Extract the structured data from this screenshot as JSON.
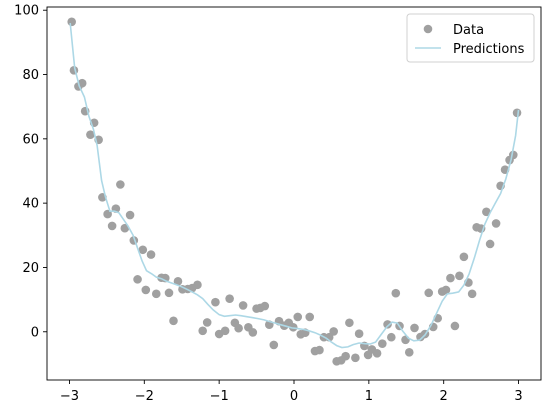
{
  "chart_data": {
    "type": "scatter",
    "title": "",
    "xlabel": "",
    "ylabel": "",
    "xlim": [
      -3.3,
      3.3
    ],
    "ylim": [
      -15,
      101
    ],
    "xticks": [
      -3,
      -2,
      -1,
      0,
      1,
      2,
      3
    ],
    "yticks": [
      0,
      20,
      40,
      60,
      80,
      100
    ],
    "grid": false,
    "legend_position": "top-right",
    "colors": {
      "data": "#a0a0a0",
      "predictions": "#add8e6"
    },
    "series": [
      {
        "name": "Data",
        "kind": "scatter",
        "points": [
          [
            -2.97,
            96.4
          ],
          [
            -2.94,
            81.3
          ],
          [
            -2.88,
            76.3
          ],
          [
            -2.83,
            77.3
          ],
          [
            -2.79,
            68.6
          ],
          [
            -2.72,
            61.3
          ],
          [
            -2.67,
            65.0
          ],
          [
            -2.61,
            59.7
          ],
          [
            -2.56,
            41.8
          ],
          [
            -2.49,
            36.6
          ],
          [
            -2.43,
            32.9
          ],
          [
            -2.38,
            38.3
          ],
          [
            -2.32,
            45.8
          ],
          [
            -2.26,
            32.2
          ],
          [
            -2.19,
            36.3
          ],
          [
            -2.14,
            28.4
          ],
          [
            -2.09,
            16.3
          ],
          [
            -2.02,
            25.5
          ],
          [
            -1.98,
            13.0
          ],
          [
            -1.91,
            24.0
          ],
          [
            -1.84,
            11.8
          ],
          [
            -1.77,
            16.8
          ],
          [
            -1.72,
            16.7
          ],
          [
            -1.67,
            12.1
          ],
          [
            -1.61,
            3.4
          ],
          [
            -1.55,
            15.7
          ],
          [
            -1.49,
            13.2
          ],
          [
            -1.42,
            13.3
          ],
          [
            -1.36,
            13.6
          ],
          [
            -1.29,
            14.6
          ],
          [
            -1.22,
            0.3
          ],
          [
            -1.16,
            2.9
          ],
          [
            -1.05,
            9.2
          ],
          [
            -1.0,
            -0.7
          ],
          [
            -0.92,
            0.3
          ],
          [
            -0.86,
            10.3
          ],
          [
            -0.79,
            2.8
          ],
          [
            -0.74,
            1.1
          ],
          [
            -0.68,
            8.2
          ],
          [
            -0.61,
            1.4
          ],
          [
            -0.55,
            -0.2
          ],
          [
            -0.5,
            7.2
          ],
          [
            -0.45,
            7.4
          ],
          [
            -0.39,
            8.0
          ],
          [
            -0.33,
            2.2
          ],
          [
            -0.27,
            -4.1
          ],
          [
            -0.2,
            3.3
          ],
          [
            -0.13,
            1.9
          ],
          [
            -0.07,
            2.8
          ],
          [
            -0.01,
            1.4
          ],
          [
            0.05,
            4.6
          ],
          [
            0.09,
            -0.8
          ],
          [
            0.15,
            -0.3
          ],
          [
            0.21,
            4.6
          ],
          [
            0.28,
            -6.0
          ],
          [
            0.34,
            -5.7
          ],
          [
            0.4,
            -1.7
          ],
          [
            0.47,
            -1.7
          ],
          [
            0.53,
            0.1
          ],
          [
            0.57,
            -9.2
          ],
          [
            0.63,
            -8.9
          ],
          [
            0.69,
            -7.6
          ],
          [
            0.74,
            2.8
          ],
          [
            0.82,
            -8.1
          ],
          [
            0.87,
            -0.6
          ],
          [
            0.94,
            -4.4
          ],
          [
            0.99,
            -7.2
          ],
          [
            1.04,
            -5.5
          ],
          [
            1.11,
            -6.7
          ],
          [
            1.18,
            -3.7
          ],
          [
            1.25,
            2.3
          ],
          [
            1.3,
            -1.7
          ],
          [
            1.36,
            12.0
          ],
          [
            1.41,
            1.8
          ],
          [
            1.49,
            -2.5
          ],
          [
            1.54,
            -6.4
          ],
          [
            1.61,
            1.2
          ],
          [
            1.69,
            -1.6
          ],
          [
            1.75,
            -0.7
          ],
          [
            1.8,
            12.1
          ],
          [
            1.86,
            1.5
          ],
          [
            1.92,
            4.2
          ],
          [
            1.98,
            12.5
          ],
          [
            2.03,
            13.0
          ],
          [
            2.09,
            16.7
          ],
          [
            2.15,
            1.8
          ],
          [
            2.21,
            17.4
          ],
          [
            2.27,
            23.3
          ],
          [
            2.33,
            15.3
          ],
          [
            2.38,
            11.8
          ],
          [
            2.44,
            32.5
          ],
          [
            2.5,
            32.1
          ],
          [
            2.57,
            37.3
          ],
          [
            2.62,
            27.3
          ],
          [
            2.7,
            33.7
          ],
          [
            2.76,
            45.4
          ],
          [
            2.82,
            50.4
          ],
          [
            2.88,
            53.4
          ],
          [
            2.93,
            55.0
          ],
          [
            2.98,
            68.1
          ]
        ]
      },
      {
        "name": "Predictions",
        "kind": "line",
        "points": [
          [
            -2.99,
            96.0
          ],
          [
            -2.93,
            82.0
          ],
          [
            -2.87,
            76.5
          ],
          [
            -2.8,
            73.0
          ],
          [
            -2.74,
            67.0
          ],
          [
            -2.68,
            63.0
          ],
          [
            -2.63,
            58.0
          ],
          [
            -2.57,
            47.0
          ],
          [
            -2.52,
            42.0
          ],
          [
            -2.46,
            37.5
          ],
          [
            -2.4,
            37.5
          ],
          [
            -2.34,
            37.0
          ],
          [
            -2.28,
            35.0
          ],
          [
            -2.22,
            33.0
          ],
          [
            -2.15,
            30.0
          ],
          [
            -2.09,
            26.0
          ],
          [
            -2.03,
            22.0
          ],
          [
            -1.97,
            19.0
          ],
          [
            -1.9,
            18.0
          ],
          [
            -1.84,
            17.0
          ],
          [
            -1.77,
            16.5
          ],
          [
            -1.71,
            15.8
          ],
          [
            -1.64,
            15.2
          ],
          [
            -1.57,
            14.6
          ],
          [
            -1.5,
            14.0
          ],
          [
            -1.43,
            13.2
          ],
          [
            -1.36,
            12.4
          ],
          [
            -1.29,
            11.5
          ],
          [
            -1.22,
            10.3
          ],
          [
            -1.15,
            8.5
          ],
          [
            -1.08,
            6.8
          ],
          [
            -1.0,
            5.3
          ],
          [
            -0.93,
            4.8
          ],
          [
            -0.86,
            5.0
          ],
          [
            -0.78,
            5.2
          ],
          [
            -0.71,
            5.0
          ],
          [
            -0.63,
            4.7
          ],
          [
            -0.56,
            4.4
          ],
          [
            -0.48,
            4.1
          ],
          [
            -0.4,
            3.7
          ],
          [
            -0.33,
            3.2
          ],
          [
            -0.25,
            2.7
          ],
          [
            -0.18,
            2.2
          ],
          [
            -0.1,
            1.7
          ],
          [
            -0.03,
            1.2
          ],
          [
            0.05,
            1.0
          ],
          [
            0.13,
            0.7
          ],
          [
            0.2,
            0.3
          ],
          [
            0.28,
            -0.3
          ],
          [
            0.35,
            -1.0
          ],
          [
            0.43,
            -2.0
          ],
          [
            0.5,
            -3.2
          ],
          [
            0.57,
            -4.3
          ],
          [
            0.64,
            -4.9
          ],
          [
            0.72,
            -4.7
          ],
          [
            0.79,
            -4.0
          ],
          [
            0.87,
            -3.5
          ],
          [
            0.95,
            -3.7
          ],
          [
            1.02,
            -3.8
          ],
          [
            1.09,
            -3.2
          ],
          [
            1.16,
            -1.0
          ],
          [
            1.24,
            1.5
          ],
          [
            1.31,
            3.0
          ],
          [
            1.38,
            2.7
          ],
          [
            1.45,
            0.3
          ],
          [
            1.53,
            -2.0
          ],
          [
            1.6,
            -2.8
          ],
          [
            1.68,
            -2.6
          ],
          [
            1.75,
            -1.0
          ],
          [
            1.83,
            2.0
          ],
          [
            1.9,
            5.5
          ],
          [
            1.98,
            9.5
          ],
          [
            2.05,
            11.8
          ],
          [
            2.12,
            12.0
          ],
          [
            2.2,
            12.4
          ],
          [
            2.27,
            14.5
          ],
          [
            2.34,
            18.0
          ],
          [
            2.41,
            23.0
          ],
          [
            2.48,
            28.5
          ],
          [
            2.55,
            33.5
          ],
          [
            2.62,
            37.0
          ],
          [
            2.69,
            40.0
          ],
          [
            2.76,
            43.0
          ],
          [
            2.83,
            47.5
          ],
          [
            2.9,
            53.5
          ],
          [
            2.96,
            61.0
          ],
          [
            3.0,
            69.0
          ]
        ]
      }
    ]
  }
}
